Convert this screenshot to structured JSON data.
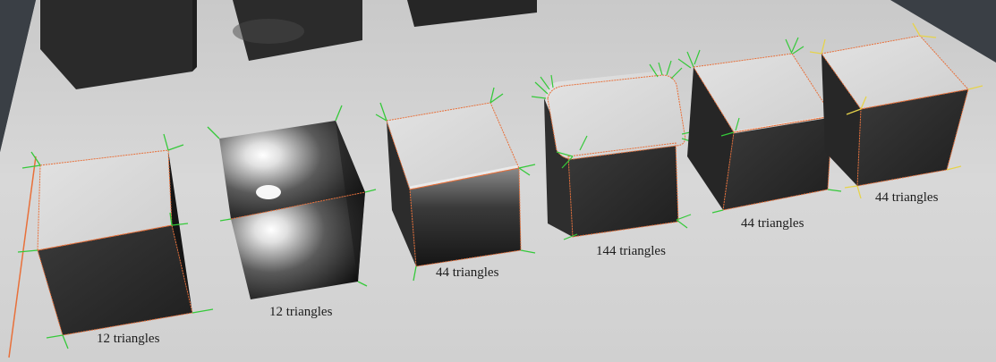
{
  "scene": {
    "description_labels": [
      {
        "id": "cube-1",
        "text": "12 triangles"
      },
      {
        "id": "cube-2",
        "text": "12 triangles"
      },
      {
        "id": "cube-3",
        "text": "44 triangles"
      },
      {
        "id": "cube-4",
        "text": "144 triangles"
      },
      {
        "id": "cube-5",
        "text": "44 triangles"
      },
      {
        "id": "cube-6",
        "text": "44 triangles"
      }
    ],
    "colors": {
      "floor": "#d4d4d4",
      "back_wall": "#3a3f45",
      "cube_top": "#d9d9d9",
      "cube_side": "#2b2b2b",
      "edge_outline": "#e8703a",
      "normal_green": "#35c93a",
      "normal_yellow": "#e6d34a"
    }
  }
}
